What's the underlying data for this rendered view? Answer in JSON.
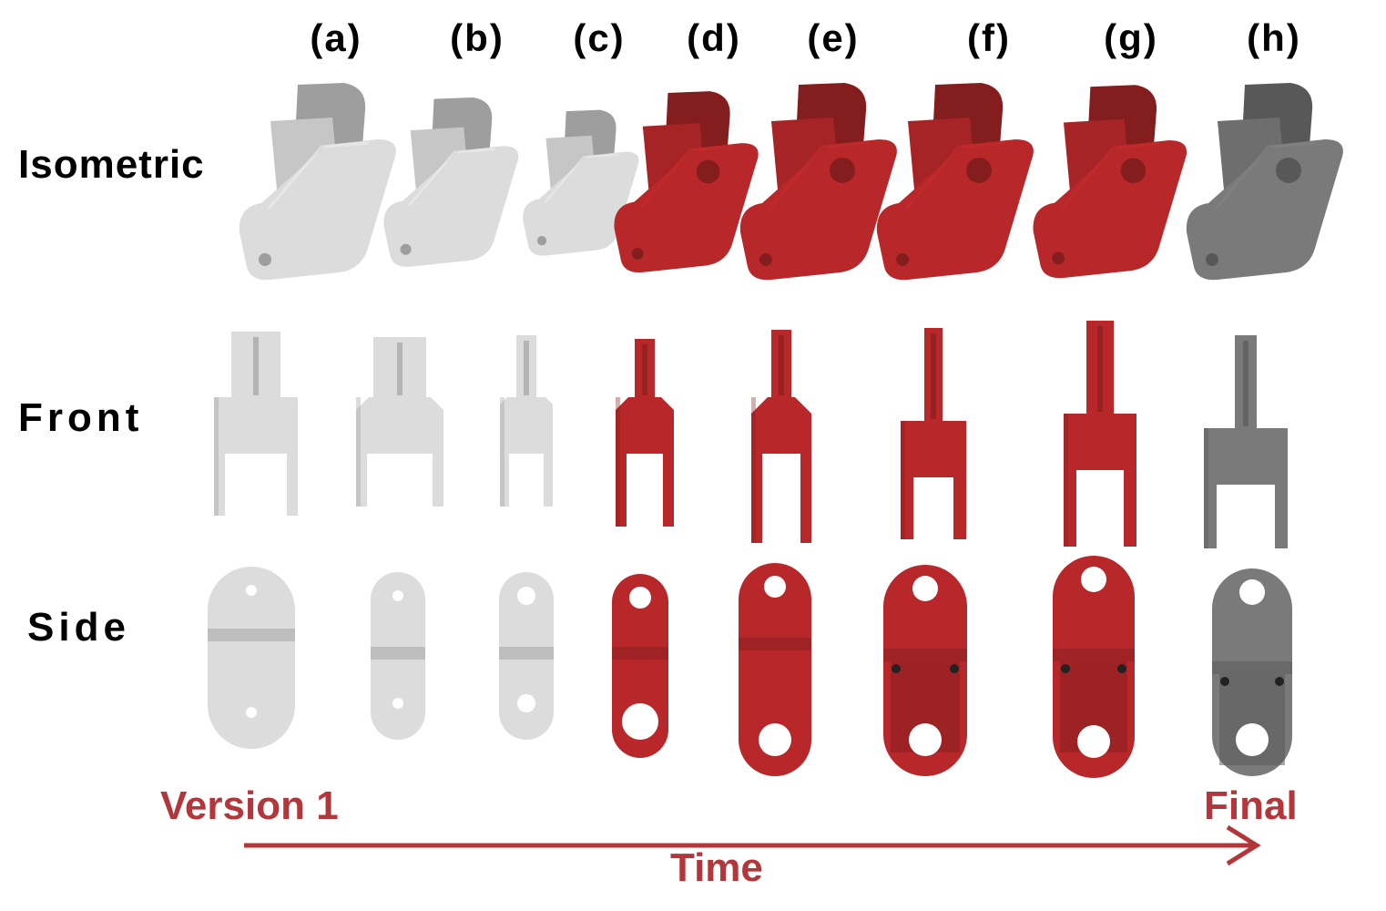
{
  "columns": [
    "(a)",
    "(b)",
    "(c)",
    "(d)",
    "(e)",
    "(f)",
    "(g)",
    "(h)"
  ],
  "views": {
    "isometric": "Isometric",
    "front": "Front",
    "side": "Side"
  },
  "timeline": {
    "start": "Version 1",
    "end": "Final",
    "axis": "Time"
  },
  "colors": {
    "prototype_white": "#dcdcdc",
    "prototype_red": "#b8282a",
    "final_gray": "#7a7a7a",
    "accent": "#b3373a"
  }
}
